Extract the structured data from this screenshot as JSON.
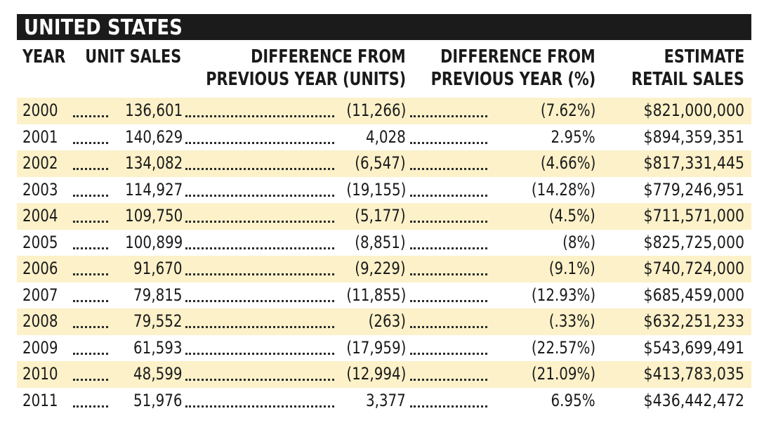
{
  "chart_data": {
    "type": "table",
    "title": "UNITED STATES",
    "columns": [
      {
        "key": "year",
        "label": "YEAR"
      },
      {
        "key": "units",
        "label": "UNIT SALES"
      },
      {
        "key": "diff_units",
        "label_line1": "DIFFERENCE FROM",
        "label_line2": "PREVIOUS YEAR (UNITS)"
      },
      {
        "key": "diff_pct",
        "label_line1": "DIFFERENCE FROM",
        "label_line2": "PREVIOUS YEAR (%)"
      },
      {
        "key": "retail",
        "label_line1": "ESTIMATE",
        "label_line2": "RETAIL SALES"
      }
    ],
    "rows": [
      {
        "year": "2000",
        "units": "136,601",
        "diff_units": "(11,266)",
        "diff_pct": "(7.62%)",
        "retail": "$821,000,000"
      },
      {
        "year": "2001",
        "units": "140,629",
        "diff_units": "4,028",
        "diff_pct": "2.95%",
        "retail": "$894,359,351"
      },
      {
        "year": "2002",
        "units": "134,082",
        "diff_units": "(6,547)",
        "diff_pct": "(4.66%)",
        "retail": "$817,331,445"
      },
      {
        "year": "2003",
        "units": "114,927",
        "diff_units": "(19,155)",
        "diff_pct": "(14.28%)",
        "retail": "$779,246,951"
      },
      {
        "year": "2004",
        "units": "109,750",
        "diff_units": "(5,177)",
        "diff_pct": "(4.5%)",
        "retail": "$711,571,000"
      },
      {
        "year": "2005",
        "units": "100,899",
        "diff_units": "(8,851)",
        "diff_pct": "(8%)",
        "retail": "$825,725,000"
      },
      {
        "year": "2006",
        "units": "91,670",
        "diff_units": "(9,229)",
        "diff_pct": "(9.1%)",
        "retail": "$740,724,000"
      },
      {
        "year": "2007",
        "units": "79,815",
        "diff_units": "(11,855)",
        "diff_pct": "(12.93%)",
        "retail": "$685,459,000"
      },
      {
        "year": "2008",
        "units": "79,552",
        "diff_units": "(263)",
        "diff_pct": "(.33%)",
        "retail": "$632,251,233"
      },
      {
        "year": "2009",
        "units": "61,593",
        "diff_units": "(17,959)",
        "diff_pct": "(22.57%)",
        "retail": "$543,699,491"
      },
      {
        "year": "2010",
        "units": "48,599",
        "diff_units": "(12,994)",
        "diff_pct": "(21.09%)",
        "retail": "$413,783,035"
      },
      {
        "year": "2011",
        "units": "51,976",
        "diff_units": "3,377",
        "diff_pct": "6.95%",
        "retail": "$436,442,472"
      }
    ],
    "shading": "alternating rows",
    "colors": {
      "title_bar": "#1b1b1b",
      "row_shade": "#fcf1c9",
      "text": "#1a1a1a"
    }
  }
}
